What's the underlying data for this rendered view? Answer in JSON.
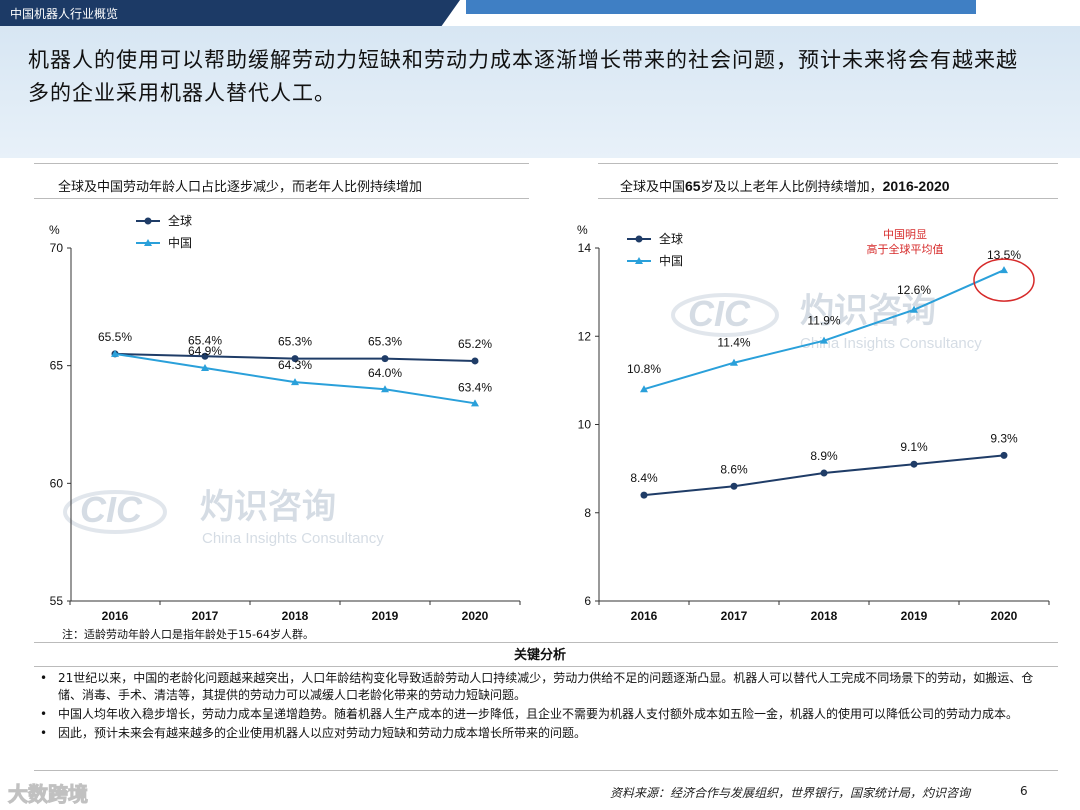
{
  "header": {
    "section_label": "中国机器人行业概览"
  },
  "headline": "机器人的使用可以帮助缓解劳动力短缺和劳动力成本逐渐增长带来的社会问题，预计未来将会有越来越多的企业采用机器人替代人工。",
  "watermark": {
    "logo": "CIC",
    "cn": "灼识咨询",
    "en": "China Insights Consultancy",
    "bottom": "大数跨境"
  },
  "colors": {
    "global": "#1f3c67",
    "china": "#2aa0da",
    "highlight": "#d62a2a"
  },
  "left_title": "全球及中国劳动年龄人口占比逐步减少，而老年人比例持续增加",
  "right_title": {
    "prefix": "全球及中国",
    "age": "65",
    "mid": "岁及以上老年人比例持续增加，",
    "years": "2016-2020"
  },
  "chart_data": [
    {
      "type": "line",
      "unit": "%",
      "x": [
        "2016",
        "2017",
        "2018",
        "2019",
        "2020"
      ],
      "ylim": [
        55,
        70
      ],
      "yticks": [
        "55",
        "60",
        "65",
        "70"
      ],
      "series": [
        {
          "name": "全球",
          "values": [
            65.5,
            65.4,
            65.3,
            65.3,
            65.2
          ],
          "labels": [
            "65.5%",
            "65.4%",
            "65.3%",
            "65.3%",
            "65.2%"
          ]
        },
        {
          "name": "中国",
          "values": [
            65.5,
            64.9,
            64.3,
            64.0,
            63.4
          ],
          "labels": [
            "",
            "64.9%",
            "64.3%",
            "64.0%",
            "63.4%"
          ]
        }
      ],
      "legend": "top-left",
      "grid": false
    },
    {
      "type": "line",
      "unit": "%",
      "x": [
        "2016",
        "2017",
        "2018",
        "2019",
        "2020"
      ],
      "ylim": [
        6,
        14
      ],
      "yticks": [
        "6",
        "8",
        "10",
        "12",
        "14"
      ],
      "series": [
        {
          "name": "全球",
          "values": [
            8.4,
            8.6,
            8.9,
            9.1,
            9.3
          ],
          "labels": [
            "8.4%",
            "8.6%",
            "8.9%",
            "9.1%",
            "9.3%"
          ]
        },
        {
          "name": "中国",
          "values": [
            10.8,
            11.4,
            11.9,
            12.6,
            13.5
          ],
          "labels": [
            "10.8%",
            "11.4%",
            "11.9%",
            "12.6%",
            "13.5%"
          ]
        }
      ],
      "annotation": {
        "line1": "中国明显",
        "line2": "高于全球平均值"
      },
      "legend": "top-left",
      "grid": false
    }
  ],
  "note": "注：适龄劳动年龄人口是指年龄处于15-64岁人群。",
  "key_findings": {
    "title": "关键分析",
    "bullets": [
      "21世纪以来，中国的老龄化问题越来越突出，人口年龄结构变化导致适龄劳动人口持续减少，劳动力供给不足的问题逐渐凸显。机器人可以替代人工完成不同场景下的劳动，如搬运、仓储、消毒、手术、清洁等，其提供的劳动力可以减缓人口老龄化带来的劳动力短缺问题。",
      "中国人均年收入稳步增长，劳动力成本呈递增趋势。随着机器人生产成本的进一步降低，且企业不需要为机器人支付额外成本如五险一金，机器人的使用可以降低公司的劳动力成本。",
      "因此，预计未来会有越来越多的企业使用机器人以应对劳动力短缺和劳动力成本增长所带来的问题。"
    ]
  },
  "source": "资料来源：经济合作与发展组织，世界银行，国家统计局，灼识咨询",
  "page_number": "6"
}
